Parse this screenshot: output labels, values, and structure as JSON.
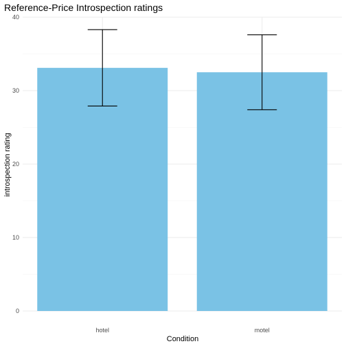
{
  "chart_data": {
    "type": "bar",
    "title": "Reference-Price Introspection ratings",
    "xlabel": "Condition",
    "ylabel": "introspection rating",
    "categories": [
      "hotel",
      "motel"
    ],
    "values": [
      33.1,
      32.5
    ],
    "error_bars": [
      {
        "low": 27.9,
        "high": 38.3
      },
      {
        "low": 27.4,
        "high": 37.6
      }
    ],
    "ylim": [
      0,
      40
    ],
    "yticks": [
      0,
      10,
      20,
      30,
      40
    ],
    "grid": true,
    "legend": "none",
    "colors": {
      "bar": "#7AC2E5",
      "grid_major": "#EBEBEB",
      "grid_minor": "#F4F4F4",
      "errorbar": "#000000"
    }
  }
}
